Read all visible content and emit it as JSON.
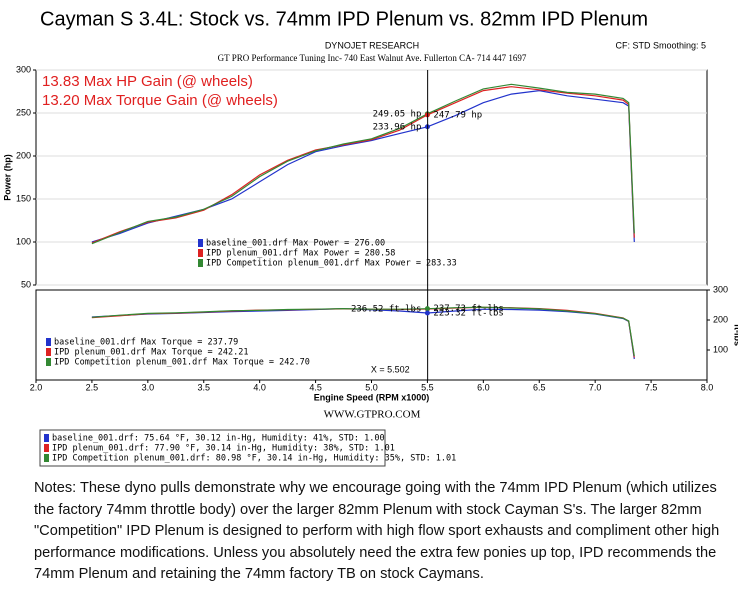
{
  "page": {
    "title": "Cayman S 3.4L: Stock vs. 74mm IPD Plenum vs. 82mm IPD Plenum",
    "dyno_name": "DYNOJET RESEARCH",
    "settings": "CF: STD  Smoothing: 5",
    "shop": "GT PRO Performance Tuning Inc- 740 East Walnut Ave. Fullerton CA- 714 447 1697",
    "gain_notes": [
      "13.83 Max HP Gain (@ wheels)",
      "13.20 Max Torque Gain (@ wheels)"
    ],
    "website": "WWW.GTPRO.COM",
    "conditions": [
      {
        "text": "baseline_001.drf: 75.64 °F, 30.12 in-Hg, Humidity: 41%, STD: 1.00",
        "color": "#2233cc"
      },
      {
        "text": "IPD plenum_001.drf: 77.90 °F, 30.14 in-Hg, Humidity: 38%, STD: 1.01",
        "color": "#dd2222"
      },
      {
        "text": "IPD Competition plenum_001.drf: 80.98 °F, 30.14 in-Hg, Humidity: 35%, STD: 1.01",
        "color": "#338833"
      }
    ],
    "notes": "Notes: These dyno pulls demonstrate why we encourage going with the 74mm IPD Plenum (which utilizes the factory 74mm throttle body) over the larger 82mm Plenum with stock Cayman S's. The larger 82mm \"Competition\" IPD Plenum is designed to perform with high flow sport exhausts and compliment other high performance modifications. Unless you absolutely need the extra few ponies up top, IPD recommends the 74mm Plenum and retaining the 74mm factory TB on stock Caymans."
  },
  "chart_data": [
    {
      "type": "line",
      "y_label": "Power (hp)",
      "y_axis_side": "left",
      "grid": true,
      "x": [
        2.5,
        2.75,
        3.0,
        3.25,
        3.5,
        3.75,
        4.0,
        4.25,
        4.5,
        4.75,
        5.0,
        5.25,
        5.5,
        5.75,
        6.0,
        6.25,
        6.5,
        6.75,
        7.0,
        7.25,
        7.3,
        7.35
      ],
      "xlim": [
        2.0,
        8.0
      ],
      "ylim": [
        50,
        300
      ],
      "yticks": [
        50,
        100,
        150,
        200,
        250,
        300
      ],
      "series": [
        {
          "name": "baseline_001.drf Max Power = 276.00",
          "color": "#2233cc",
          "values": [
            100,
            110,
            122,
            130,
            138,
            150,
            170,
            190,
            205,
            212,
            218,
            226,
            233.96,
            247,
            262,
            272,
            276,
            270,
            266,
            262,
            258,
            100
          ]
        },
        {
          "name": "IPD plenum_001.drf Max Power = 280.58",
          "color": "#dd2222",
          "values": [
            99,
            112,
            123,
            128,
            137,
            155,
            178,
            195,
            207,
            213,
            219,
            230,
            247.79,
            262,
            276,
            280.58,
            277,
            273,
            270,
            265,
            260,
            105
          ]
        },
        {
          "name": "IPD Competition plenum_001.drf Max Power = 283.33",
          "color": "#338833",
          "values": [
            98,
            111,
            124,
            129,
            138,
            153,
            176,
            194,
            206,
            214,
            220,
            232,
            249.05,
            264,
            278,
            283.33,
            279,
            274,
            272,
            267,
            262,
            110
          ]
        }
      ],
      "annotations": [
        {
          "label": "249.05 hp",
          "x": 5.5,
          "value": 249.05,
          "color": "#338833",
          "side": "left"
        },
        {
          "label": "233.96 hp",
          "x": 5.5,
          "value": 233.96,
          "color": "#2233cc",
          "side": "left"
        },
        {
          "label": "247.79 hp",
          "x": 5.5,
          "value": 247.79,
          "color": "#dd2222",
          "side": "right"
        }
      ]
    },
    {
      "type": "line",
      "y_label": "ft-lbs",
      "y_axis_side": "right",
      "grid": false,
      "x_label": "Engine Speed (RPM x1000)",
      "x": [
        2.5,
        2.75,
        3.0,
        3.25,
        3.5,
        3.75,
        4.0,
        4.25,
        4.5,
        4.75,
        5.0,
        5.25,
        5.5,
        5.75,
        6.0,
        6.25,
        6.5,
        6.75,
        7.0,
        7.25,
        7.3,
        7.35
      ],
      "xlim": [
        2.0,
        8.0
      ],
      "xticks": [
        {
          "value": 2.0,
          "label": "2.0"
        },
        2.5,
        {
          "value": 3.0,
          "label": "3.0"
        },
        3.5,
        {
          "value": 4.0,
          "label": "4.0"
        },
        4.5,
        {
          "value": 5.0,
          "label": "5.0"
        },
        5.5,
        {
          "value": 6.0,
          "label": "6.0"
        },
        6.5,
        {
          "value": 7.0,
          "label": "7.0"
        },
        7.5,
        {
          "value": 8.0,
          "label": "8.0"
        }
      ],
      "ylim": [
        0,
        300
      ],
      "yticks": [
        100,
        200,
        300
      ],
      "cursor": {
        "value": 5.502,
        "label": "X = 5.502"
      },
      "series": [
        {
          "name": "baseline_001.drf Max Torque = 237.79",
          "color": "#2233cc",
          "values": [
            210,
            215,
            220,
            222,
            225,
            228,
            230,
            232,
            235,
            237.79,
            234,
            230,
            223.32,
            230,
            236,
            235,
            233,
            228,
            220,
            205,
            195,
            70
          ]
        },
        {
          "name": "IPD plenum_001.drf Max Torque = 242.21",
          "color": "#dd2222",
          "values": [
            208,
            214,
            221,
            223,
            226,
            230,
            233,
            234,
            236,
            237,
            236,
            235,
            236.52,
            240,
            242.21,
            241,
            238,
            232,
            222,
            207,
            196,
            75
          ]
        },
        {
          "name": "IPD Competition plenum_001.drf Max Torque = 242.70",
          "color": "#338833",
          "values": [
            209,
            216,
            222,
            224,
            227,
            231,
            232,
            235,
            236,
            238,
            236,
            236,
            237.73,
            241,
            242.7,
            240,
            237,
            230,
            221,
            206,
            197,
            80
          ]
        }
      ],
      "annotations": [
        {
          "label": "236.52 ft-lbs",
          "x": 5.5,
          "value": 236.52,
          "color": "#dd2222",
          "side": "left"
        },
        {
          "label": "237.73 ft-lbs",
          "x": 5.5,
          "value": 237.73,
          "color": "#338833",
          "side": "right"
        },
        {
          "label": "223.32 ft-lbs",
          "x": 5.5,
          "value": 223.32,
          "color": "#2233cc",
          "side": "right"
        }
      ]
    }
  ]
}
